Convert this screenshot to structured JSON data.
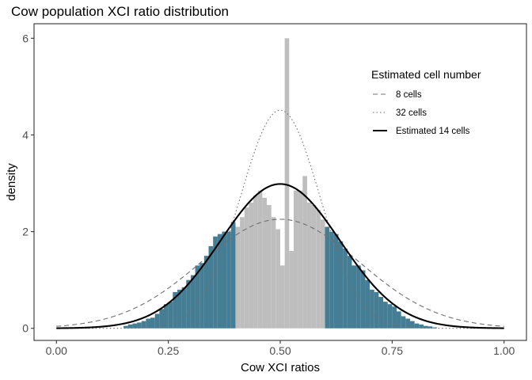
{
  "chart_data": {
    "type": "histogram",
    "title": "Cow population XCI ratio distribution",
    "xlabel": "Cow XCI ratios",
    "ylabel": "density",
    "xlim": [
      -0.05,
      1.05
    ],
    "ylim": [
      -0.25,
      6.3
    ],
    "x_ticks": [
      0.0,
      0.25,
      0.5,
      0.75,
      1.0
    ],
    "x_tick_labels": [
      "0.00",
      "0.25",
      "0.50",
      "0.75",
      "1.00"
    ],
    "y_ticks": [
      0,
      2,
      4,
      6
    ],
    "y_tick_labels": [
      "0",
      "2",
      "4",
      "6"
    ],
    "grid": false,
    "colors": {
      "tail_bars": "#447d94",
      "center_bars": "#bebebe",
      "curves": "#000000",
      "dashed_curve": "#707070",
      "dotted_curve": "#707070"
    },
    "histogram": {
      "bin_width": 0.01,
      "bin_start": 0.15,
      "center_range": [
        0.395,
        0.605
      ],
      "densities": [
        0.05,
        0.08,
        0.1,
        0.12,
        0.15,
        0.2,
        0.22,
        0.3,
        0.4,
        0.5,
        0.55,
        0.75,
        0.8,
        0.85,
        1.0,
        1.1,
        1.3,
        1.35,
        1.5,
        1.7,
        1.9,
        1.95,
        2.0,
        2.0,
        2.2,
        2.1,
        2.3,
        2.5,
        2.6,
        2.75,
        2.85,
        2.7,
        2.55,
        2.3,
        2.05,
        1.3,
        6.0,
        1.6,
        2.85,
        2.85,
        3.15,
        2.6,
        2.55,
        2.45,
        2.25,
        2.1,
        2.0,
        1.95,
        1.8,
        1.65,
        1.5,
        1.3,
        1.3,
        1.2,
        1.0,
        0.8,
        0.75,
        0.65,
        0.55,
        0.5,
        0.45,
        0.35,
        0.25,
        0.2,
        0.15,
        0.1,
        0.08,
        0.05,
        0.04,
        0.02
      ]
    },
    "curves": [
      {
        "name": "8 cells",
        "style": "dashed",
        "mean": 0.5,
        "sd": 0.1768
      },
      {
        "name": "32 cells",
        "style": "dotted",
        "mean": 0.5,
        "sd": 0.0884
      },
      {
        "name": "Estimated 14 cells",
        "style": "solid",
        "mean": 0.5,
        "sd": 0.1336
      }
    ],
    "legend": {
      "title": "Estimated cell number",
      "position": "top-right",
      "entries": [
        "8 cells",
        "32 cells",
        "Estimated 14 cells"
      ]
    }
  }
}
